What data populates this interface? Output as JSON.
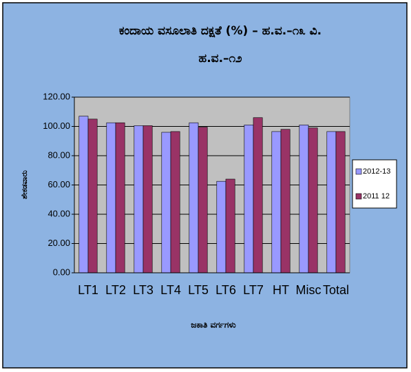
{
  "chart_data": {
    "type": "bar",
    "title": "ಕಂದಾಯ ವಸೂಲಾತಿ ದಕ್ಷತೆ (%) – ಹ.ವ.–೧೩ ವಿ.",
    "subtitle": "ಹ.ವ.–೧೨",
    "y_label": "ಶೇಕಡವಾರು",
    "x_label": "ಜಕಾತಿ ವರ್ಗಗಳು",
    "categories": [
      "LT1",
      "LT2",
      "LT3",
      "LT4",
      "LT5",
      "LT6",
      "LT7",
      "HT",
      "Misc",
      "Total"
    ],
    "series": [
      {
        "name": "2012-13",
        "color": "#9999ff",
        "values": [
          107,
          102.5,
          100.5,
          96,
          102.5,
          62.5,
          101,
          96.5,
          101,
          96.5
        ]
      },
      {
        "name": "2011 12",
        "color": "#993366",
        "values": [
          105,
          102.5,
          100.5,
          96.5,
          99.5,
          64,
          106,
          98,
          99,
          96.5
        ]
      }
    ],
    "ylim": [
      0,
      120
    ],
    "yticks": [
      {
        "value": 0,
        "label": "0.00"
      },
      {
        "value": 20,
        "label": "20.00"
      },
      {
        "value": 40,
        "label": "40.00"
      },
      {
        "value": 60,
        "label": "60.00"
      },
      {
        "value": 80,
        "label": "80.00"
      },
      {
        "value": 100,
        "label": "100.00"
      },
      {
        "value": 120,
        "label": "120.00"
      }
    ],
    "grid": true,
    "legend": "right"
  }
}
